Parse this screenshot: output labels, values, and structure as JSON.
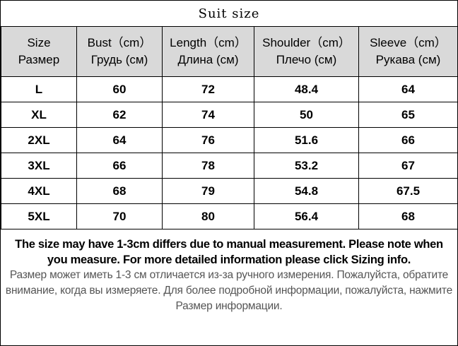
{
  "title": "Suit size",
  "headers": [
    {
      "en": "Size",
      "ru": "Размер"
    },
    {
      "en": "Bust（cm）",
      "ru": "Грудь (см)"
    },
    {
      "en": "Length（cm）",
      "ru": "Длина (см)"
    },
    {
      "en": "Shoulder（cm）",
      "ru": "Плечо (см)"
    },
    {
      "en": "Sleeve（cm）",
      "ru": "Рукава (см)"
    }
  ],
  "rows": [
    [
      "L",
      "60",
      "72",
      "48.4",
      "64"
    ],
    [
      "XL",
      "62",
      "74",
      "50",
      "65"
    ],
    [
      "2XL",
      "64",
      "76",
      "51.6",
      "66"
    ],
    [
      "3XL",
      "66",
      "78",
      "53.2",
      "67"
    ],
    [
      "4XL",
      "68",
      "79",
      "54.8",
      "67.5"
    ],
    [
      "5XL",
      "70",
      "80",
      "56.4",
      "68"
    ]
  ],
  "note": {
    "en": "The size may have 1-3cm differs due to manual measurement. Please note when you measure. For more detailed information please click Sizing info.",
    "ru": "Размер может иметь 1-3 см отличается из-за ручного измерения. Пожалуйста, обратите внимание, когда вы измеряете. Для более подробной информации, пожалуйста, нажмите Размер информации."
  }
}
